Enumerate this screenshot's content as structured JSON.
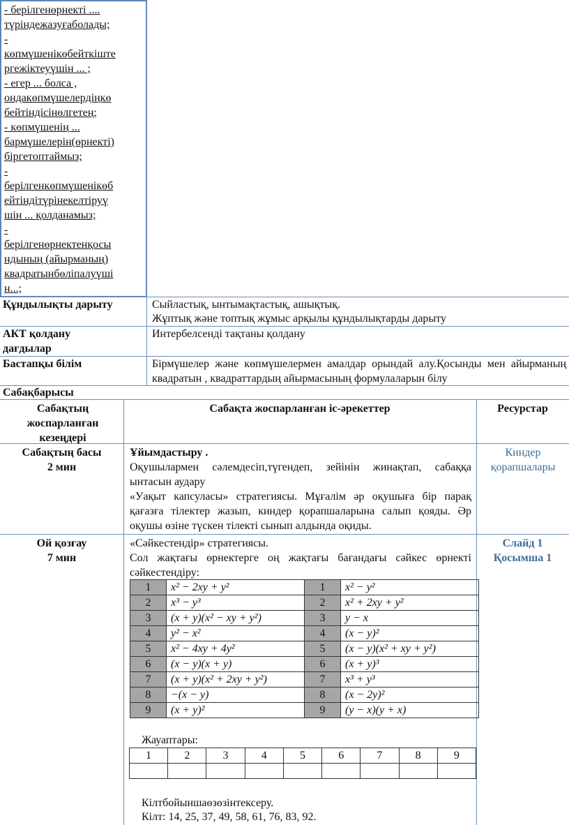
{
  "objectives_text": [
    "- берілгенөрнекті ....",
    "түріндежазуғаболады;",
    "-",
    "көпмүшенікөбейткіште",
    "ргежіктеуүшін ... ;",
    "- егер ... болса ,",
    "ондакөпмүшелердіңкө",
    "бейтіндісінөлгетең;",
    "- көпмүшенің ...",
    "бармүшелерін(өрнекті)",
    "біргетоптаймыз;",
    "-",
    "берілгенкөпмүшенікөб",
    "ейтіндітүрінекелтіруү",
    "шін ... қолданамыз;",
    "-",
    "берілгенөрнектенқосы",
    "ндының (айырманың)",
    "квадратынбөліпалуүші",
    "н...;"
  ],
  "values_row": {
    "label": "Құндылықты дарыту",
    "line1": "Сыйластық, ынтымақтастық, ашықтық.",
    "line2": "Жұптық және топтық жұмыс арқылы құндылықтарды дарыту"
  },
  "ict_row": {
    "label": "АКТ қолдану дағдылар",
    "text": "Интербелсенді тақтаны қолдану"
  },
  "prior_row": {
    "label": "Бастапқы білім",
    "text": "Бірмүшелер және көпмүшелермен амалдар орындай алу.Қосынды мен айырманың квадратын , квадраттардың айырмасының формулаларын білу"
  },
  "lesson_flow": "Сабақбарысы",
  "headers": {
    "stages": "Сабақтың жоспарланған кезеңдері",
    "activities": "Сабақта жоспарланған іс-әрекеттер",
    "resources": "Ресурстар"
  },
  "stage1": {
    "name": "Сабақтың басы",
    "time": "2 мин",
    "title": "Ұйымдастыру .",
    "p1": "Оқушылармен сәлемдесіп,түгендеп, зейінін жинақтап, сабаққа ынтасын аудару",
    "p2": "«Уақыт капсуласы» стратегиясы. Мұғалім әр оқушыға бір парақ қағазға тілектер жазып, киндер қорапшаларына салып қояды. Әр оқушы өзіне түскен  тілекті сынып алдында оқиды.",
    "resource": "Киндер қорапшалары"
  },
  "stage2": {
    "name": "Ой қозғау",
    "time": "7 мин",
    "title": " «Сәйкестендір» стратегиясы.",
    "p1": "Сол жақтағы өрнектерге оң жақтағы бағандағы сәйкес өрнекті сәйкестендіру:",
    "resource1": "Слайд 1",
    "resource2": "Қосымша 1",
    "left": [
      "x² − 2xy + y²",
      "x³ − y³",
      "(x + y)(x² − xy + y²)",
      "y² − x²",
      "x² − 4xy + 4y²",
      "(x − y)(x + y)",
      "(x + y)(x² + 2xy + y²)",
      "−(x − y)",
      "(x + y)²"
    ],
    "right": [
      "x² − y²",
      "x² + 2xy + y²",
      "y − x",
      "(x − y)²",
      "(x − y)(x² + xy + y²)",
      "(x + y)³",
      "x³ + y³",
      "(x − 2y)²",
      "(y − x)(y + x)"
    ],
    "numbers": [
      "1",
      "2",
      "3",
      "4",
      "5",
      "6",
      "7",
      "8",
      "9"
    ],
    "answers_label": "Жауаптары:",
    "check_label": "Кілтбойыншаөзөзінтексеру.",
    "key": "Кілт: 14, 25, 37, 49, 58, 61, 76, 83, 92."
  },
  "colors": {
    "border": "#6b8fb5",
    "resource_text": "#3b6d9a",
    "number_cell": "#a6a6a6"
  }
}
